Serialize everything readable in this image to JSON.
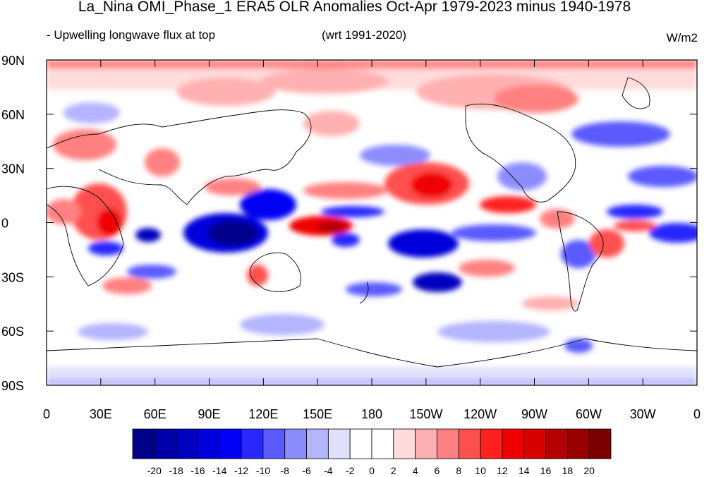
{
  "title": "La_Nina OMI_Phase_1 ERA5 OLR Anomalies Oct-Apr 1979-2023 minus 1940-1978",
  "left_string": "- Upwelling longwave flux at top",
  "center_string": "(wrt 1991-2020)",
  "right_string": "W/m2",
  "y_tick_labels": [
    "90N",
    "60N",
    "30N",
    "0",
    "30S",
    "60S",
    "90S"
  ],
  "x_tick_labels": [
    "0",
    "30E",
    "60E",
    "90E",
    "120E",
    "150E",
    "180",
    "150W",
    "120W",
    "90W",
    "60W",
    "30W",
    "0"
  ],
  "colorbar": {
    "labels": [
      "-20",
      "-18",
      "-16",
      "-14",
      "-12",
      "-10",
      "-8",
      "-6",
      "-4",
      "-2",
      "0",
      "2",
      "4",
      "6",
      "8",
      "10",
      "12",
      "14",
      "16",
      "18",
      "20"
    ],
    "colors": [
      "#00008b",
      "#0000a8",
      "#0000c0",
      "#0000dc",
      "#0000f5",
      "#2828ff",
      "#5a5aff",
      "#8c8cff",
      "#b4b4ff",
      "#e0e0fa",
      "#ffffff",
      "#ffffff",
      "#ffdcdc",
      "#ffb0b0",
      "#ff8080",
      "#ff5050",
      "#ff2020",
      "#f00000",
      "#d80000",
      "#b40000",
      "#960000",
      "#7a0000"
    ]
  }
}
